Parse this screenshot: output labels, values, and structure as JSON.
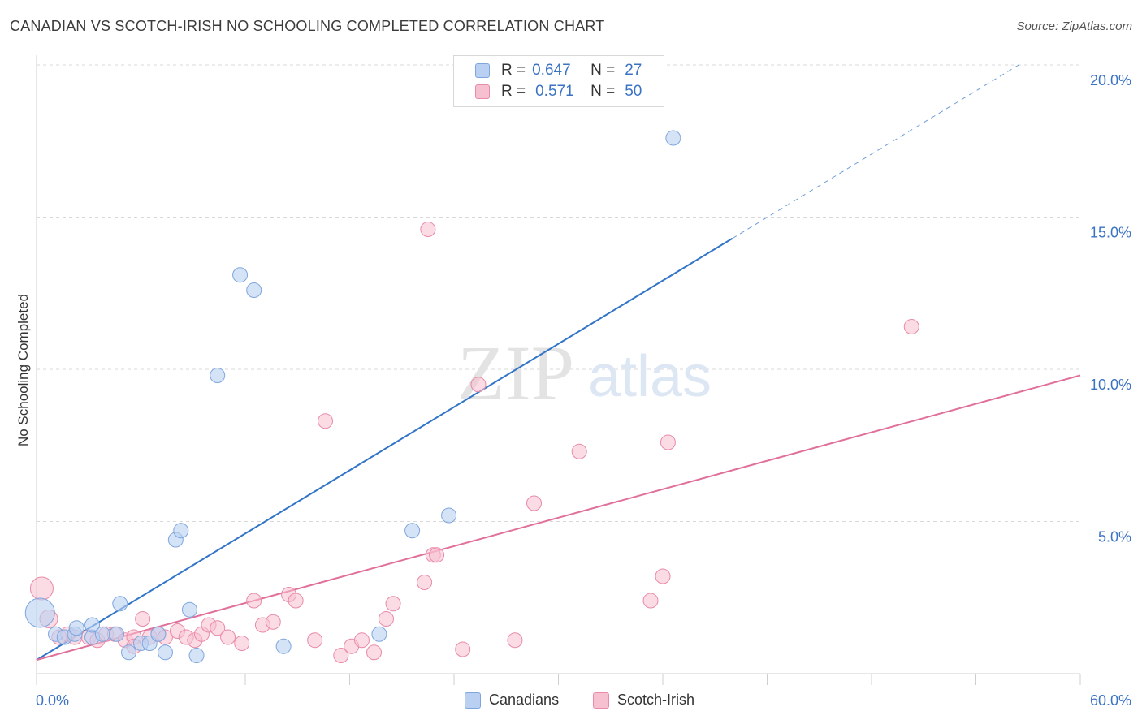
{
  "title": "CANADIAN VS SCOTCH-IRISH NO SCHOOLING COMPLETED CORRELATION CHART",
  "source": "Source: ZipAtlas.com",
  "watermark": {
    "zip": "ZIP",
    "atlas": "atlas"
  },
  "legend": {
    "r_label": "R =",
    "n_label": "N =",
    "canadians": {
      "r": "0.647",
      "n": "27"
    },
    "scotch_irish": {
      "r": "0.571",
      "n": "50"
    }
  },
  "colors": {
    "canadians_fill": "#b9d0f2",
    "canadians_stroke": "#7ea6dd",
    "canadians_line": "#3275c8",
    "scotch_fill": "#f7c0d0",
    "scotch_stroke": "#e98aa8",
    "scotch_line": "#e0709a",
    "tick_label": "#3b73c4"
  },
  "chart_data": {
    "type": "scatter",
    "title": "CANADIAN VS SCOTCH-IRISH NO SCHOOLING COMPLETED CORRELATION CHART",
    "xlabel": "",
    "ylabel": "No Schooling Completed",
    "xlim": [
      0,
      60
    ],
    "ylim": [
      0,
      20
    ],
    "x_tick_labels": [
      "0.0%",
      "60.0%"
    ],
    "y_ticks": [
      5,
      10,
      15,
      20
    ],
    "y_tick_labels": [
      "5.0%",
      "10.0%",
      "15.0%",
      "20.0%"
    ],
    "grid": true,
    "series": [
      {
        "name": "Canadians",
        "r": 0.647,
        "n": 27,
        "trend": {
          "x0": 0,
          "y0": 0.45,
          "x1": 40,
          "y1": 14.3,
          "dashed_to_x": 56.5
        },
        "points": [
          [
            0.2,
            2.0,
            18
          ],
          [
            1.1,
            1.3,
            9
          ],
          [
            1.6,
            1.2,
            9
          ],
          [
            2.2,
            1.3,
            9
          ],
          [
            2.3,
            1.5,
            9
          ],
          [
            3.2,
            1.2,
            9
          ],
          [
            3.2,
            1.6,
            9
          ],
          [
            3.8,
            1.3,
            9
          ],
          [
            4.6,
            1.3,
            9
          ],
          [
            4.8,
            2.3,
            9
          ],
          [
            5.3,
            0.7,
            9
          ],
          [
            6.0,
            1.0,
            9
          ],
          [
            6.5,
            1.0,
            9
          ],
          [
            7.0,
            1.3,
            9
          ],
          [
            7.4,
            0.7,
            9
          ],
          [
            8.0,
            4.4,
            9
          ],
          [
            8.3,
            4.7,
            9
          ],
          [
            8.8,
            2.1,
            9
          ],
          [
            9.2,
            0.6,
            9
          ],
          [
            10.4,
            9.8,
            9
          ],
          [
            11.7,
            13.1,
            9
          ],
          [
            12.5,
            12.6,
            9
          ],
          [
            14.2,
            0.9,
            9
          ],
          [
            19.7,
            1.3,
            9
          ],
          [
            21.6,
            4.7,
            9
          ],
          [
            23.7,
            5.2,
            9
          ],
          [
            36.6,
            17.6,
            9
          ]
        ]
      },
      {
        "name": "Scotch-Irish",
        "r": 0.571,
        "n": 50,
        "trend": {
          "x0": 0,
          "y0": 0.45,
          "x1": 60,
          "y1": 9.8
        },
        "points": [
          [
            0.3,
            2.8,
            14
          ],
          [
            0.7,
            1.8,
            11
          ],
          [
            1.3,
            1.2,
            9
          ],
          [
            1.8,
            1.3,
            9
          ],
          [
            2.2,
            1.2,
            9
          ],
          [
            3.0,
            1.2,
            9
          ],
          [
            3.5,
            1.1,
            9
          ],
          [
            4.0,
            1.3,
            9
          ],
          [
            4.5,
            1.3,
            9
          ],
          [
            5.1,
            1.1,
            9
          ],
          [
            5.6,
            1.2,
            9
          ],
          [
            6.1,
            1.8,
            9
          ],
          [
            6.5,
            1.2,
            9
          ],
          [
            7.0,
            1.3,
            9
          ],
          [
            7.4,
            1.2,
            9
          ],
          [
            8.1,
            1.4,
            9
          ],
          [
            8.6,
            1.2,
            9
          ],
          [
            9.1,
            1.1,
            9
          ],
          [
            9.5,
            1.3,
            9
          ],
          [
            9.9,
            1.6,
            9
          ],
          [
            10.4,
            1.5,
            9
          ],
          [
            11.0,
            1.2,
            9
          ],
          [
            11.8,
            1.0,
            9
          ],
          [
            12.5,
            2.4,
            9
          ],
          [
            13.0,
            1.6,
            9
          ],
          [
            13.6,
            1.7,
            9
          ],
          [
            14.5,
            2.6,
            9
          ],
          [
            14.9,
            2.4,
            9
          ],
          [
            16.0,
            1.1,
            9
          ],
          [
            16.6,
            8.3,
            9
          ],
          [
            17.5,
            0.6,
            9
          ],
          [
            18.1,
            0.9,
            9
          ],
          [
            18.7,
            1.1,
            9
          ],
          [
            19.4,
            0.7,
            9
          ],
          [
            20.1,
            1.8,
            9
          ],
          [
            20.5,
            2.3,
            9
          ],
          [
            22.3,
            3.0,
            9
          ],
          [
            22.5,
            14.6,
            9
          ],
          [
            22.8,
            3.9,
            9
          ],
          [
            23.0,
            3.9,
            9
          ],
          [
            24.5,
            0.8,
            9
          ],
          [
            25.4,
            9.5,
            9
          ],
          [
            27.5,
            1.1,
            9
          ],
          [
            28.6,
            5.6,
            9
          ],
          [
            31.2,
            7.3,
            9
          ],
          [
            35.3,
            2.4,
            9
          ],
          [
            36.0,
            3.2,
            9
          ],
          [
            36.3,
            7.6,
            9
          ],
          [
            50.3,
            11.4,
            9
          ],
          [
            5.6,
            0.9,
            9
          ]
        ]
      }
    ]
  },
  "bottom_legend": {
    "canadians": "Canadians",
    "scotch_irish": "Scotch-Irish"
  }
}
